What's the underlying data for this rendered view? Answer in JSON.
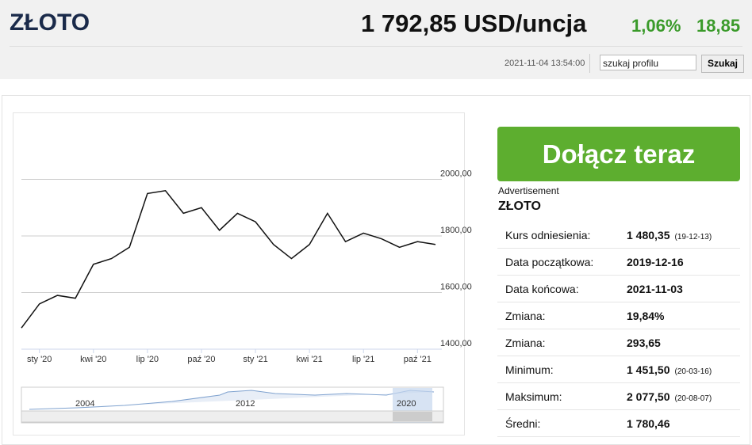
{
  "header": {
    "title": "ZŁOTO",
    "price": "1 792,85 USD/uncja",
    "change_pct": "1,06%",
    "change": "18,85",
    "timestamp": "2021-11-04 13:54:00",
    "search_placeholder": "szukaj profilu",
    "search_button": "Szukaj"
  },
  "ad": {
    "button": "Dołącz teraz",
    "label": "Advertisement"
  },
  "section": {
    "title": "ZŁOTO",
    "rows": [
      {
        "label": "Kurs odniesienia:",
        "value": "1 480,35",
        "date": "(19-12-13)"
      },
      {
        "label": "Data początkowa:",
        "value": "2019-12-16"
      },
      {
        "label": "Data końcowa:",
        "value": "2021-11-03"
      },
      {
        "label": "Zmiana:",
        "value": "19,84%"
      },
      {
        "label": "Zmiana:",
        "value": "293,65"
      },
      {
        "label": "Minimum:",
        "value": "1 451,50",
        "date": "(20-03-16)"
      },
      {
        "label": "Maksimum:",
        "value": "2 077,50",
        "date": "(20-08-07)"
      },
      {
        "label": "Średni:",
        "value": "1 780,46"
      }
    ]
  },
  "navigator": {
    "labels": [
      "2004",
      "2012",
      "2020"
    ]
  },
  "chart_data": {
    "type": "line",
    "categories": [
      null,
      "sty '20",
      null,
      null,
      "kwi '20",
      null,
      null,
      "lip '20",
      null,
      null,
      "paź '20",
      null,
      null,
      "sty '21",
      null,
      null,
      "kwi '21",
      null,
      null,
      "lip '21",
      null,
      null,
      "paź '21",
      null
    ],
    "series": [
      {
        "name": "ZŁOTO",
        "color": "#111111",
        "values": [
          1475,
          1560,
          1590,
          1580,
          1700,
          1720,
          1760,
          1950,
          1960,
          1880,
          1900,
          1820,
          1880,
          1850,
          1770,
          1720,
          1770,
          1880,
          1780,
          1810,
          1790,
          1760,
          1780,
          1770
        ]
      }
    ],
    "ylim": [
      1400,
      2200
    ],
    "yticks": [
      {
        "value": 1400,
        "label": "1400,00"
      },
      {
        "value": 1600,
        "label": "1600,00"
      },
      {
        "value": 1800,
        "label": "1800,00"
      },
      {
        "value": 2000,
        "label": "2000,00"
      }
    ],
    "grid": true
  }
}
